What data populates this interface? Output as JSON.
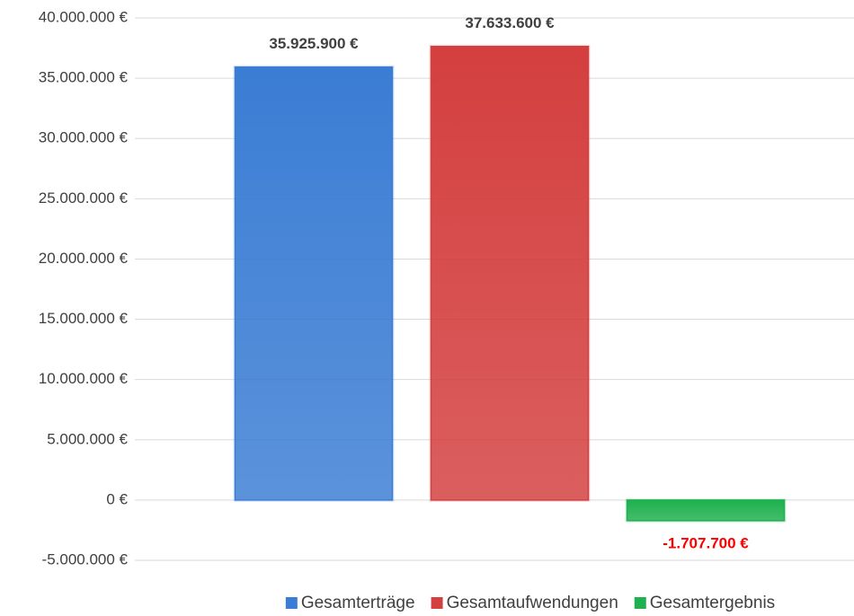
{
  "chart_data": {
    "type": "bar",
    "categories": [
      null
    ],
    "series": [
      {
        "name": "Gesamterträge",
        "color": "#3b7dd4",
        "values": [
          35925900
        ],
        "value_labels": [
          "35.925.900 €"
        ],
        "value_label_color": "#404040"
      },
      {
        "name": "Gesamtaufwendungen",
        "color": "#d43f3f",
        "values": [
          37633600
        ],
        "value_labels": [
          "37.633.600 €"
        ],
        "value_label_color": "#404040"
      },
      {
        "name": "Gesamtergebnis",
        "color": "#1fb04f",
        "values": [
          -1707700
        ],
        "value_labels": [
          "-1.707.700 €"
        ],
        "value_label_color": "#ff0000"
      }
    ],
    "ylim": [
      -5000000,
      40000000
    ],
    "yticks": [
      {
        "value": -5000000,
        "label": "-5.000.000 €"
      },
      {
        "value": 0,
        "label": "0 €"
      },
      {
        "value": 5000000,
        "label": "5.000.000 €"
      },
      {
        "value": 10000000,
        "label": "10.000.000 €"
      },
      {
        "value": 15000000,
        "label": "15.000.000 €"
      },
      {
        "value": 20000000,
        "label": "20.000.000 €"
      },
      {
        "value": 25000000,
        "label": "25.000.000 €"
      },
      {
        "value": 30000000,
        "label": "30.000.000 €"
      },
      {
        "value": 35000000,
        "label": "35.000.000 €"
      },
      {
        "value": 40000000,
        "label": "40.000.000 €"
      }
    ],
    "grid": true,
    "legend": "bottom"
  }
}
